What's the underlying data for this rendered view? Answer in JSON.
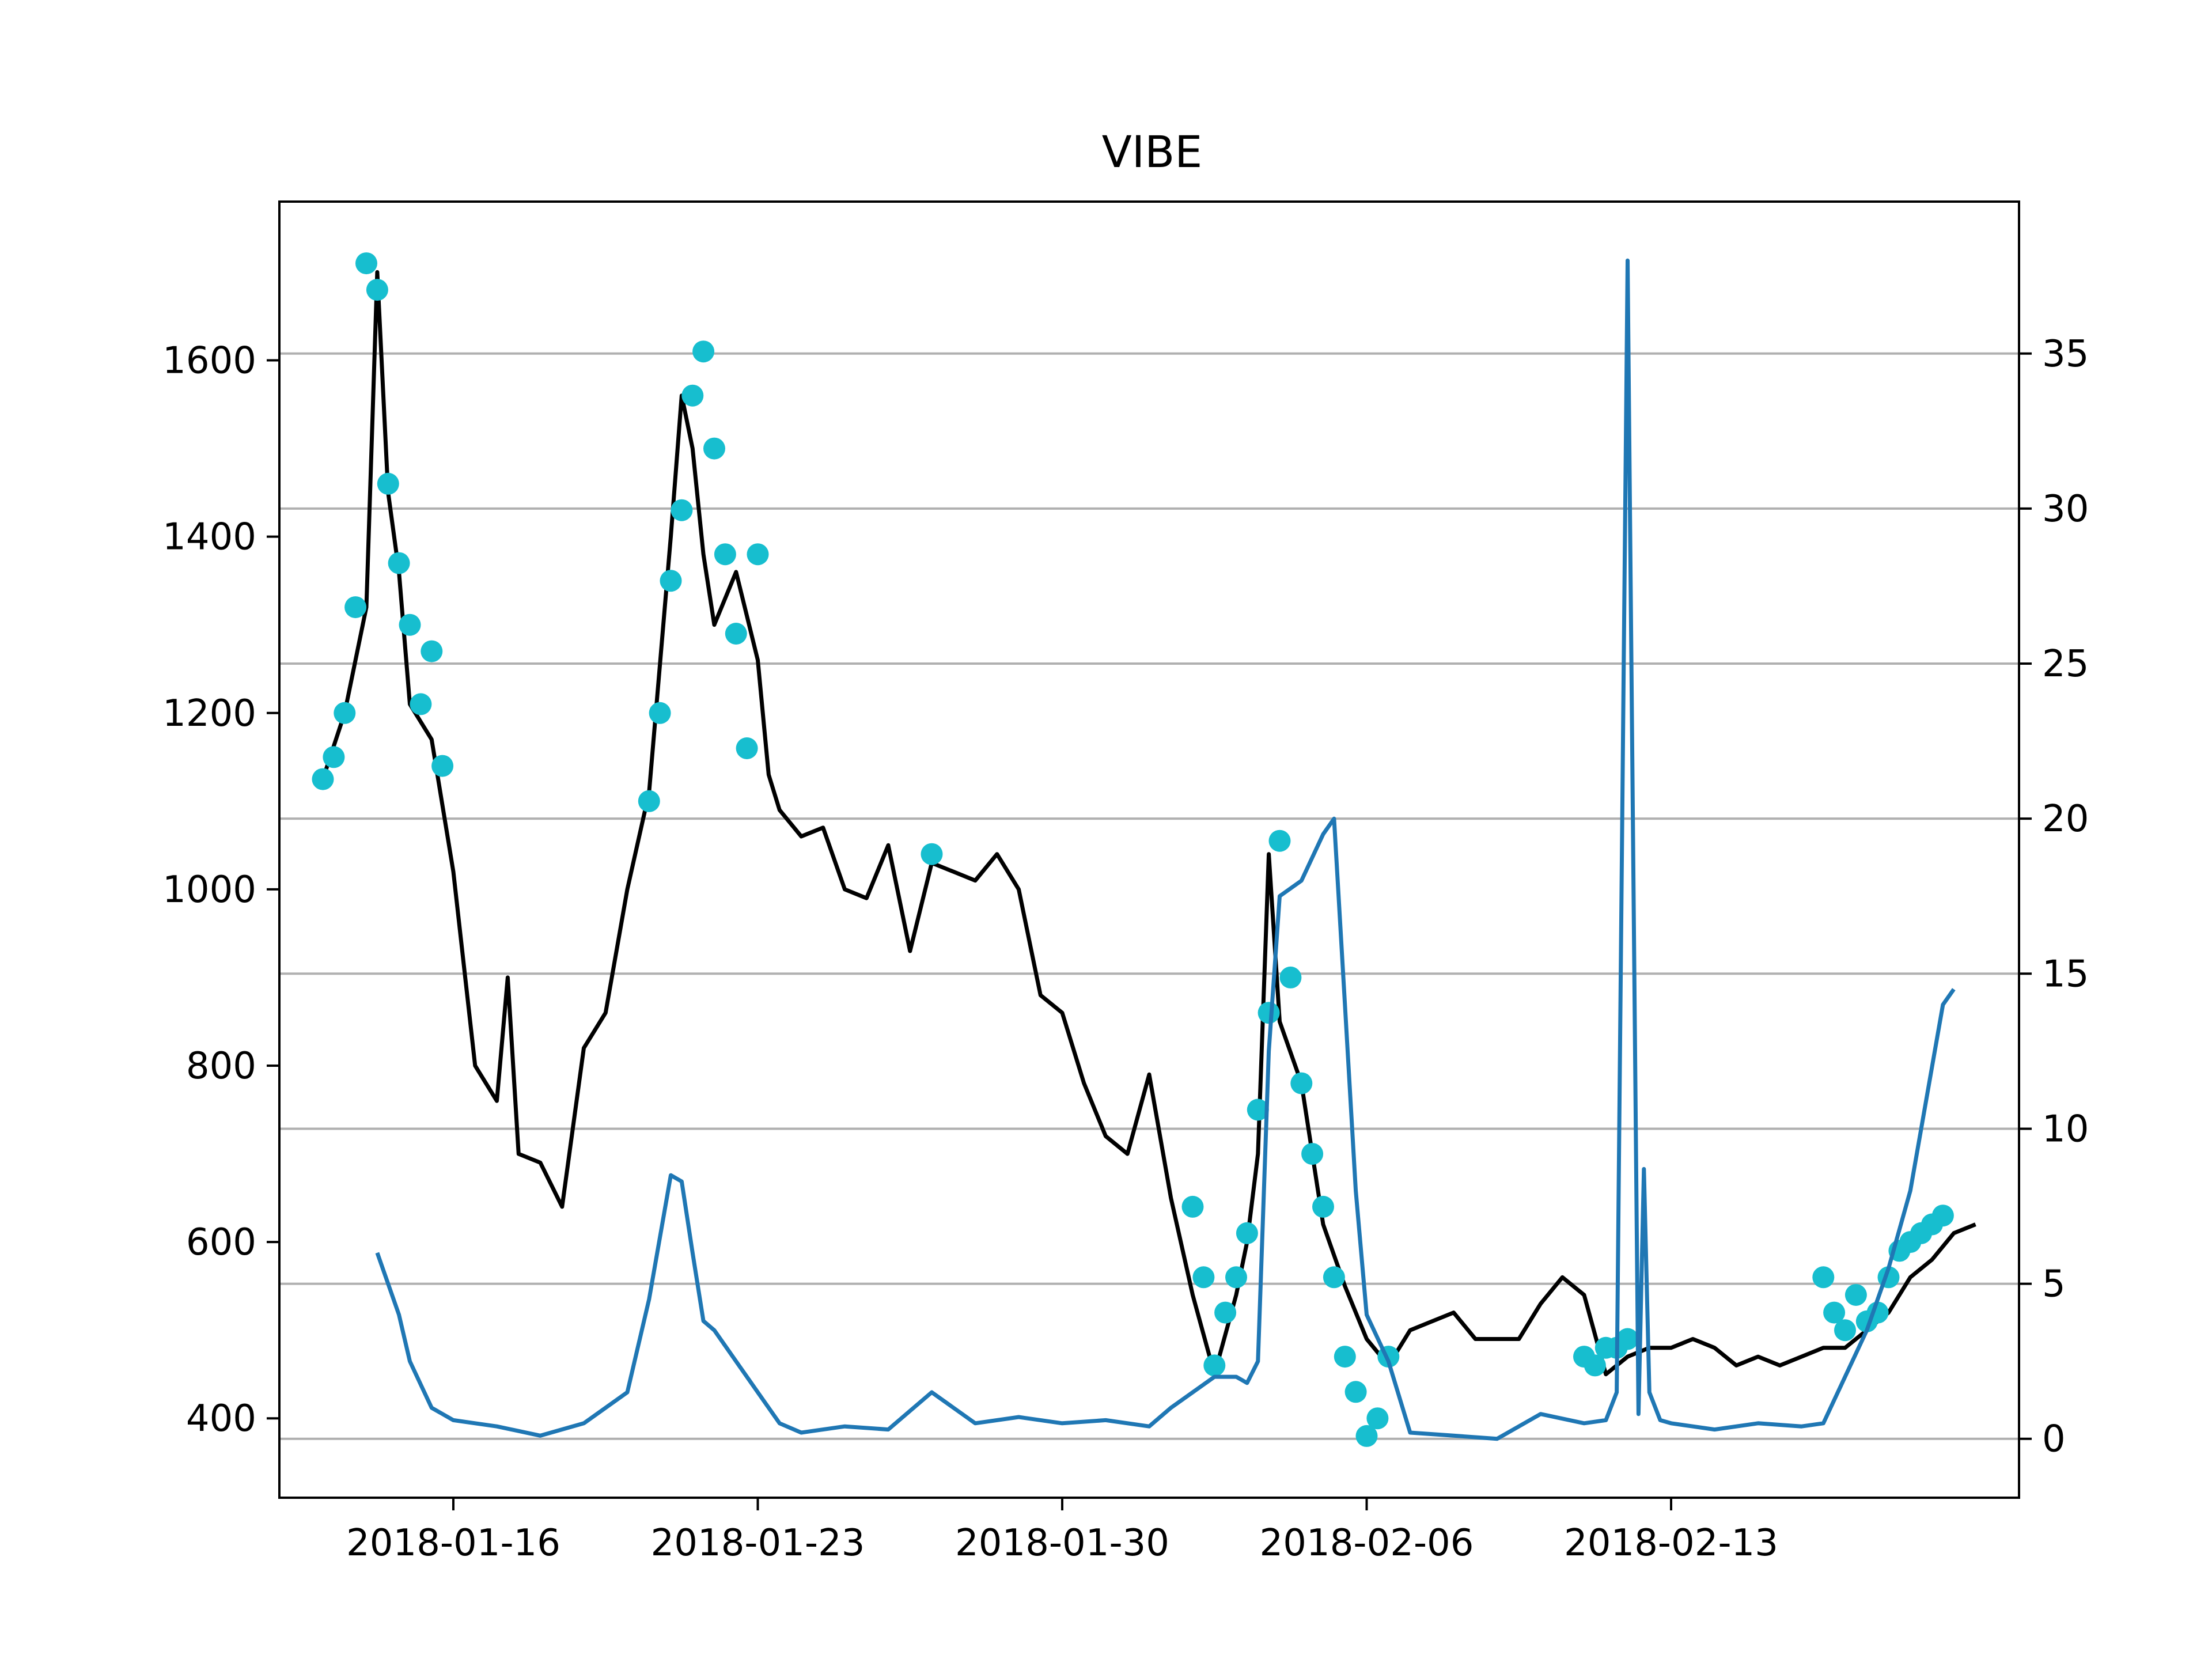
{
  "chart_data": {
    "type": "line",
    "title": "VIBE",
    "xlabel": "",
    "ylabel": "",
    "x_type": "date",
    "xlim": [
      "2018-01-12",
      "2018-02-21"
    ],
    "xticks": [
      "2018-01-16",
      "2018-01-23",
      "2018-01-30",
      "2018-02-06",
      "2018-02-13"
    ],
    "ylim": [
      310,
      1780
    ],
    "yticks": [
      400,
      600,
      800,
      1000,
      1200,
      1400,
      1600
    ],
    "y2lim": [
      -1.9,
      39.9
    ],
    "y2ticks": [
      0,
      5,
      10,
      15,
      20,
      25,
      30,
      35
    ],
    "grid": "horizontal lines at right-axis ticks",
    "colors": {
      "price": "#000000",
      "markers": "#17becf",
      "indicator": "#1f77b4",
      "grid": "#b0b0b0"
    },
    "series": [
      {
        "style": "line",
        "axis": "left",
        "color": "#000000",
        "x": [
          "2018-01-13",
          "2018-01-13T12:00",
          "2018-01-14",
          "2018-01-14T06:00",
          "2018-01-14T12:00",
          "2018-01-14T18:00",
          "2018-01-15",
          "2018-01-15T12:00",
          "2018-01-16",
          "2018-01-16T12:00",
          "2018-01-17",
          "2018-01-17T06:00",
          "2018-01-17T12:00",
          "2018-01-18",
          "2018-01-18T12:00",
          "2018-01-19",
          "2018-01-19T12:00",
          "2018-01-20",
          "2018-01-20T12:00",
          "2018-01-21",
          "2018-01-21T06:00",
          "2018-01-21T12:00",
          "2018-01-21T18:00",
          "2018-01-22",
          "2018-01-22T12:00",
          "2018-01-23",
          "2018-01-23T06:00",
          "2018-01-23T12:00",
          "2018-01-24",
          "2018-01-24T12:00",
          "2018-01-25",
          "2018-01-25T12:00",
          "2018-01-26",
          "2018-01-26T12:00",
          "2018-01-27",
          "2018-01-27T12:00",
          "2018-01-28",
          "2018-01-28T12:00",
          "2018-01-29",
          "2018-01-29T12:00",
          "2018-01-30",
          "2018-01-30T12:00",
          "2018-01-31",
          "2018-01-31T12:00",
          "2018-02-01",
          "2018-02-01T12:00",
          "2018-02-02",
          "2018-02-02T12:00",
          "2018-02-03",
          "2018-02-03T06:00",
          "2018-02-03T12:00",
          "2018-02-03T18:00",
          "2018-02-04",
          "2018-02-04T12:00",
          "2018-02-05",
          "2018-02-05T12:00",
          "2018-02-06",
          "2018-02-06T12:00",
          "2018-02-07",
          "2018-02-07T12:00",
          "2018-02-08",
          "2018-02-08T12:00",
          "2018-02-09",
          "2018-02-09T12:00",
          "2018-02-10",
          "2018-02-10T12:00",
          "2018-02-11",
          "2018-02-11T12:00",
          "2018-02-12",
          "2018-02-12T12:00",
          "2018-02-13",
          "2018-02-13T12:00",
          "2018-02-14",
          "2018-02-14T12:00",
          "2018-02-15",
          "2018-02-15T12:00",
          "2018-02-16",
          "2018-02-16T12:00",
          "2018-02-17",
          "2018-02-17T12:00",
          "2018-02-18",
          "2018-02-18T12:00",
          "2018-02-19",
          "2018-02-19T12:00",
          "2018-02-20"
        ],
        "values": [
          1125,
          1200,
          1320,
          1700,
          1450,
          1360,
          1210,
          1170,
          1020,
          800,
          760,
          900,
          700,
          690,
          640,
          820,
          860,
          1000,
          1110,
          1400,
          1560,
          1500,
          1380,
          1300,
          1360,
          1260,
          1130,
          1090,
          1060,
          1070,
          1000,
          990,
          1050,
          930,
          1030,
          1020,
          1010,
          1040,
          1000,
          880,
          860,
          780,
          720,
          700,
          790,
          650,
          540,
          450,
          540,
          600,
          700,
          1040,
          850,
          780,
          620,
          550,
          490,
          460,
          500,
          510,
          520,
          490,
          490,
          490,
          530,
          560,
          540,
          450,
          470,
          480,
          480,
          490,
          480,
          460,
          470,
          460,
          470,
          480,
          480,
          500,
          520,
          560,
          580,
          610,
          620
        ]
      },
      {
        "style": "markers",
        "axis": "left",
        "color": "#17becf",
        "x": [
          "2018-01-13",
          "2018-01-13T06:00",
          "2018-01-13T12:00",
          "2018-01-13T18:00",
          "2018-01-14",
          "2018-01-14T06:00",
          "2018-01-14T12:00",
          "2018-01-14T18:00",
          "2018-01-15",
          "2018-01-15T06:00",
          "2018-01-15T12:00",
          "2018-01-15T18:00",
          "2018-01-20T12:00",
          "2018-01-20T18:00",
          "2018-01-21",
          "2018-01-21T06:00",
          "2018-01-21T12:00",
          "2018-01-21T18:00",
          "2018-01-22",
          "2018-01-22T06:00",
          "2018-01-22T12:00",
          "2018-01-22T18:00",
          "2018-01-23",
          "2018-01-27",
          "2018-02-02",
          "2018-02-02T06:00",
          "2018-02-02T12:00",
          "2018-02-02T18:00",
          "2018-02-03",
          "2018-02-03T06:00",
          "2018-02-03T12:00",
          "2018-02-03T18:00",
          "2018-02-04",
          "2018-02-04T06:00",
          "2018-02-04T12:00",
          "2018-02-04T18:00",
          "2018-02-05",
          "2018-02-05T06:00",
          "2018-02-05T12:00",
          "2018-02-05T18:00",
          "2018-02-06",
          "2018-02-06T06:00",
          "2018-02-06T12:00",
          "2018-02-11",
          "2018-02-11T06:00",
          "2018-02-11T12:00",
          "2018-02-11T18:00",
          "2018-02-12",
          "2018-02-16T12:00",
          "2018-02-16T18:00",
          "2018-02-17",
          "2018-02-17T06:00",
          "2018-02-17T12:00",
          "2018-02-17T18:00",
          "2018-02-18",
          "2018-02-18T06:00",
          "2018-02-18T12:00",
          "2018-02-18T18:00",
          "2018-02-19",
          "2018-02-19T06:00"
        ],
        "values": [
          1125,
          1150,
          1200,
          1320,
          1710,
          1680,
          1460,
          1370,
          1300,
          1210,
          1270,
          1140,
          1100,
          1200,
          1350,
          1430,
          1560,
          1610,
          1500,
          1380,
          1290,
          1160,
          1380,
          1040,
          640,
          560,
          460,
          520,
          560,
          610,
          750,
          860,
          1055,
          900,
          780,
          700,
          640,
          560,
          470,
          430,
          380,
          400,
          470,
          470,
          460,
          480,
          480,
          490,
          560,
          520,
          500,
          540,
          510,
          520,
          560,
          590,
          600,
          610,
          620,
          630
        ]
      },
      {
        "style": "line",
        "axis": "right",
        "color": "#1f77b4",
        "x": [
          "2018-01-14T06:00",
          "2018-01-14T18:00",
          "2018-01-15",
          "2018-01-15T12:00",
          "2018-01-16",
          "2018-01-16T12:00",
          "2018-01-17",
          "2018-01-18",
          "2018-01-19",
          "2018-01-20",
          "2018-01-20T12:00",
          "2018-01-21",
          "2018-01-21T06:00",
          "2018-01-21T12:00",
          "2018-01-21T18:00",
          "2018-01-22",
          "2018-01-22T12:00",
          "2018-01-23",
          "2018-01-23T12:00",
          "2018-01-24",
          "2018-01-25",
          "2018-01-26",
          "2018-01-27",
          "2018-01-28",
          "2018-01-29",
          "2018-01-30",
          "2018-01-31",
          "2018-02-01",
          "2018-02-01T12:00",
          "2018-02-02",
          "2018-02-02T12:00",
          "2018-02-03",
          "2018-02-03T06:00",
          "2018-02-03T12:00",
          "2018-02-03T18:00",
          "2018-02-04",
          "2018-02-04T12:00",
          "2018-02-05",
          "2018-02-05T06:00",
          "2018-02-05T12:00",
          "2018-02-05T18:00",
          "2018-02-06",
          "2018-02-06T12:00",
          "2018-02-07",
          "2018-02-08",
          "2018-02-09",
          "2018-02-10",
          "2018-02-11",
          "2018-02-11T12:00",
          "2018-02-11T18:00",
          "2018-02-12",
          "2018-02-12T06:00",
          "2018-02-12T09:00",
          "2018-02-12T12:00",
          "2018-02-12T18:00",
          "2018-02-13",
          "2018-02-13T12:00",
          "2018-02-14",
          "2018-02-15",
          "2018-02-16",
          "2018-02-16T12:00",
          "2018-02-17",
          "2018-02-17T12:00",
          "2018-02-18",
          "2018-02-18T12:00",
          "2018-02-19",
          "2018-02-19T06:00",
          "2018-02-19T12:00"
        ],
        "values": [
          6.0,
          4.0,
          2.5,
          1.0,
          0.6,
          0.5,
          0.4,
          0.1,
          0.5,
          1.5,
          4.5,
          8.5,
          8.3,
          6.0,
          3.8,
          3.5,
          2.5,
          1.5,
          0.5,
          0.2,
          0.4,
          0.3,
          1.5,
          0.5,
          0.7,
          0.5,
          0.6,
          0.4,
          1.0,
          1.5,
          2.0,
          2.0,
          1.8,
          2.5,
          12.5,
          17.5,
          18.0,
          19.5,
          20.0,
          14.0,
          8.0,
          4.0,
          2.5,
          0.2,
          0.1,
          0.0,
          0.8,
          0.5,
          0.6,
          1.5,
          38.0,
          0.8,
          8.7,
          1.5,
          0.6,
          0.5,
          0.4,
          0.3,
          0.5,
          0.4,
          0.5,
          2.0,
          3.5,
          5.5,
          8.0,
          12.0,
          14.0,
          14.5
        ]
      }
    ]
  }
}
